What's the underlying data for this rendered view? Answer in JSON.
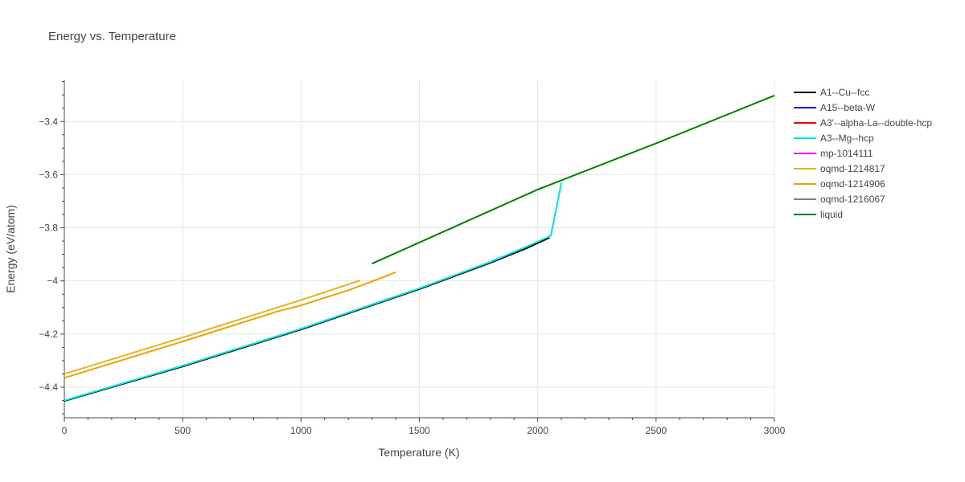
{
  "chart_data": {
    "type": "line",
    "title": "Energy vs. Temperature",
    "xlabel": "Temperature (K)",
    "ylabel": "Energy (eV/atom)",
    "xlim": [
      0,
      3000
    ],
    "ylim": [
      -4.515,
      -3.245
    ],
    "x_ticks": [
      0,
      500,
      1000,
      1500,
      2000,
      2500,
      3000
    ],
    "x_tick_labels": [
      "0",
      "500",
      "1000",
      "1500",
      "2000",
      "2500",
      "3000"
    ],
    "y_ticks": [
      -4.4,
      -4.2,
      -4.0,
      -3.8,
      -3.6,
      -3.4
    ],
    "y_tick_labels": [
      "−4.4",
      "−4.2",
      "−4",
      "−3.8",
      "−3.6",
      "−3.4"
    ],
    "grid": true,
    "legend_position": "right",
    "series": [
      {
        "name": "A1--Cu--fcc",
        "color": "#000000",
        "x": [
          0,
          500,
          1000,
          1500,
          1800,
          1950,
          2050
        ],
        "y": [
          -4.452,
          -4.322,
          -4.183,
          -4.031,
          -3.932,
          -3.878,
          -3.837
        ]
      },
      {
        "name": "A15--beta-W",
        "color": "#0000ff",
        "x": [],
        "y": []
      },
      {
        "name": "A3'--alpha-La--double-hcp",
        "color": "#ff0000",
        "x": [],
        "y": []
      },
      {
        "name": "A3--Mg--hcp",
        "color": "#00e5e5",
        "x": [
          0,
          500,
          1000,
          1500,
          1800,
          1950,
          2055,
          2100
        ],
        "y": [
          -4.45,
          -4.319,
          -4.18,
          -4.028,
          -3.928,
          -3.872,
          -3.83,
          -3.63
        ]
      },
      {
        "name": "mp-1014111",
        "color": "#ff00ff",
        "x": [],
        "y": []
      },
      {
        "name": "oqmd-1214817",
        "color": "#e6b422",
        "x": [
          0,
          500,
          1000,
          1250
        ],
        "y": [
          -4.35,
          -4.213,
          -4.072,
          -3.998
        ]
      },
      {
        "name": "oqmd-1214906",
        "color": "#f0a000",
        "x": [
          0,
          500,
          900,
          1000,
          1200,
          1350,
          1400
        ],
        "y": [
          -4.365,
          -4.228,
          -4.115,
          -4.092,
          -4.035,
          -3.985,
          -3.967
        ]
      },
      {
        "name": "oqmd-1216067",
        "color": "#808080",
        "x": [],
        "y": []
      },
      {
        "name": "liquid",
        "color": "#008000",
        "x": [
          1300,
          2000,
          2500,
          3000
        ],
        "y": [
          -3.935,
          -3.656,
          -3.482,
          -3.302
        ]
      }
    ]
  }
}
